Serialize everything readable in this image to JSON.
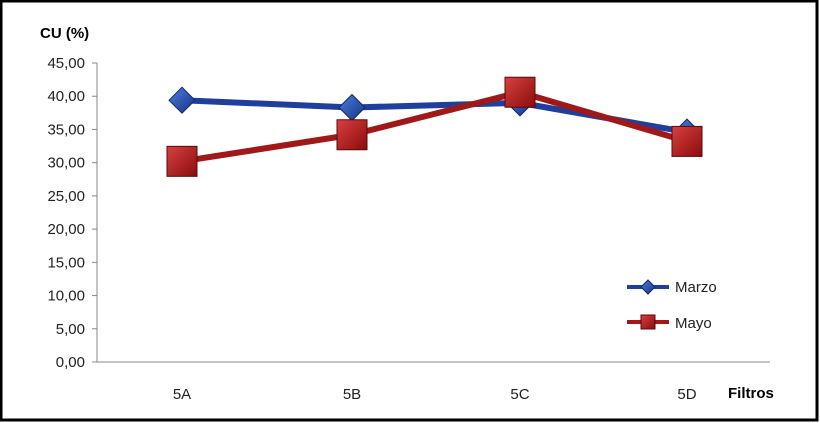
{
  "chart_data": {
    "type": "line",
    "ylabel": "CU (%)",
    "xlabel": "Filtros",
    "categories": [
      "5A",
      "5B",
      "5C",
      "5D"
    ],
    "yticks": [
      "0,00",
      "5,00",
      "10,00",
      "15,00",
      "20,00",
      "25,00",
      "30,00",
      "35,00",
      "40,00",
      "45,00"
    ],
    "ylim": [
      0,
      45
    ],
    "grid": false,
    "legend": "right",
    "series": [
      {
        "name": "Marzo",
        "values": [
          39.4,
          38.3,
          39.0,
          34.6
        ],
        "color": "#1f3f9f",
        "marker": "diamond"
      },
      {
        "name": "Mayo",
        "values": [
          30.2,
          34.2,
          40.6,
          33.2
        ],
        "color": "#a01818",
        "marker": "square"
      }
    ]
  }
}
